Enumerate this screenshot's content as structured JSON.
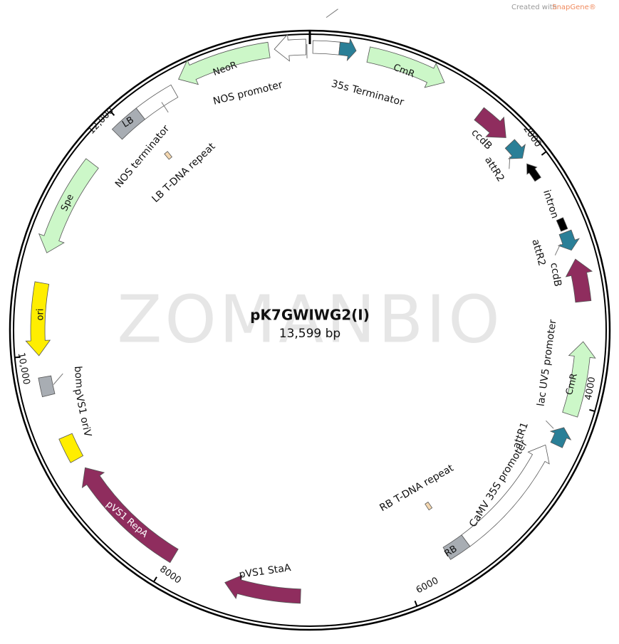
{
  "header": {
    "brand_prefix": "Created with",
    "brand": "SnapGene®"
  },
  "map": {
    "name": "pK7GWIWG2(I)",
    "size": "13,599 bp",
    "watermark": "ZOMANBIO"
  },
  "ticks": [
    "2000",
    "4000",
    "6000",
    "8000",
    "10,000",
    "12,000"
  ],
  "features": [
    "NeoR",
    "NOS promoter",
    "35s Terminator",
    "CmR",
    "ccdB",
    "attR2",
    "intron",
    "attR2",
    "ccdB",
    "lac UV5 promoter",
    "CmR",
    "attR1",
    "CaMV 35S promoter",
    "RB",
    "RB T-DNA repeat",
    "pVS1 StaA",
    "pVS1 RepA",
    "pVS1 oriV",
    "bom",
    "ori",
    "Spe",
    "LB",
    "NOS terminator",
    "LB T-DNA repeat"
  ]
}
